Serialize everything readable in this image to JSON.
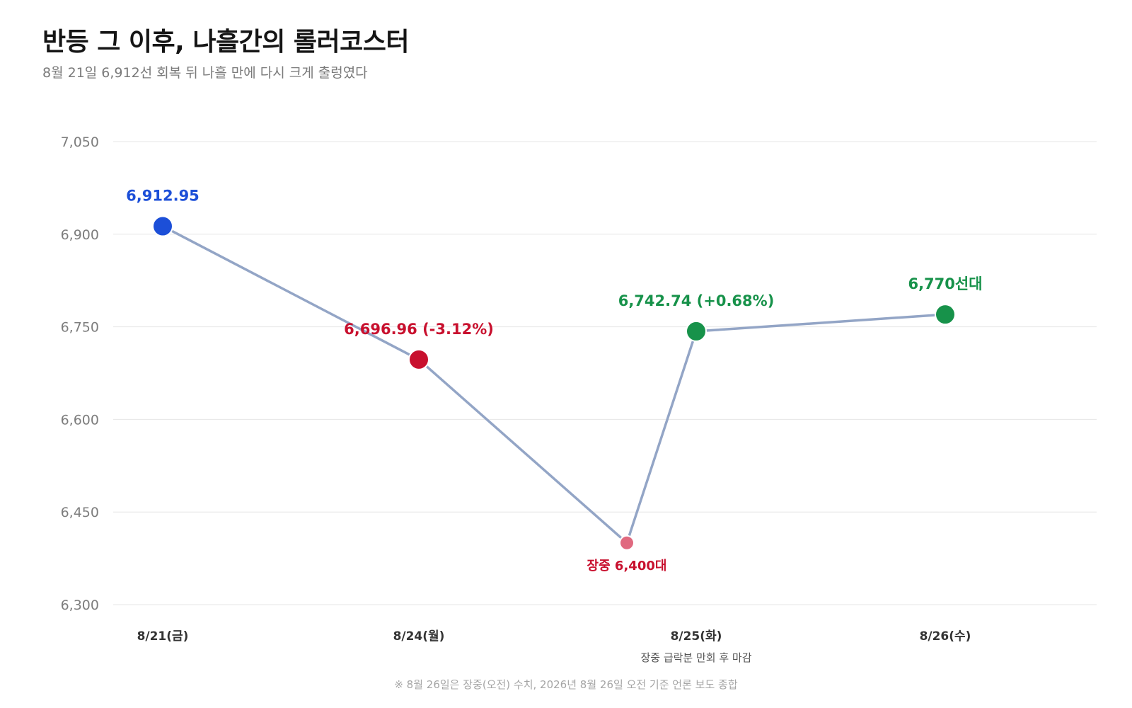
{
  "header": {
    "title": "반등 그 이후, 나흘간의 롤러코스터",
    "subtitle": "8월 21일 6,912선 회복 뒤 나흘 만에 다시 크게 출렁였다"
  },
  "chart_data": {
    "type": "line",
    "title": "반등 그 이후, 나흘간의 롤러코스터",
    "subtitle": "8월 21일 6,912선 회복 뒤 나흘 만에 다시 크게 출렁였다",
    "ylim": [
      6300,
      7050
    ],
    "yticks": [
      6300,
      6450,
      6600,
      6750,
      6900,
      7050
    ],
    "ytick_labels": [
      "6,300",
      "6,450",
      "6,600",
      "6,750",
      "6,900",
      "7,050"
    ],
    "grid": true,
    "categories": [
      "8/21(금)",
      "8/24(월)",
      "8/25(화)",
      "8/26(수)"
    ],
    "category_note": {
      "category": "8/25(화)",
      "text": "장중 급락분 만회 후 마감"
    },
    "line_color": "#93a5c6",
    "points": [
      {
        "position": 0,
        "value": 6912.95,
        "label": "6,912.95",
        "color": "#1c4fd8",
        "label_side": "above",
        "kind": "close"
      },
      {
        "position": 1,
        "value": 6696.96,
        "label": "6,696.96 (-3.12%)",
        "color": "#c8102e",
        "label_side": "above",
        "kind": "close"
      },
      {
        "position": 1.75,
        "value": 6400,
        "label": "장중 6,400대",
        "color": "#e0697f",
        "label_color": "#c8102e",
        "label_side": "below",
        "kind": "intraday"
      },
      {
        "position": 2,
        "value": 6742.74,
        "label": "6,742.74 (+0.68%)",
        "color": "#17924a",
        "label_side": "above",
        "kind": "close"
      },
      {
        "position": 3,
        "value": 6770,
        "label": "6,770선대",
        "color": "#17924a",
        "label_side": "above",
        "kind": "close"
      }
    ]
  },
  "footnote": "※ 8월 26일은 장중(오전) 수치, 2026년 8월 26일 오전 기준 언론 보도 종합"
}
